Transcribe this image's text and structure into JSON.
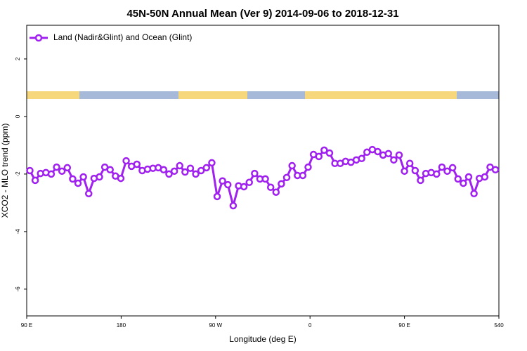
{
  "chart_data": {
    "type": "line",
    "title": "45N-50N Annual Mean (Ver 9)   2014-09-06 to 2018-12-31",
    "xlabel": "Longitude (deg E)",
    "ylabel": "XCO2 - MLO trend (ppm)",
    "legend": "upper left",
    "xlim": [
      90,
      540
    ],
    "ylim": [
      -6.93,
      3.17
    ],
    "xticks": [
      {
        "value": 90,
        "label": "90 E"
      },
      180,
      {
        "value": 270,
        "label": "90 W"
      },
      {
        "value": 360,
        "label": "0"
      },
      {
        "value": 450,
        "label": "90 E"
      },
      540
    ],
    "yticks": [
      2,
      0,
      -2,
      -4,
      -6
    ],
    "series": [
      {
        "name": "Land (Nadir&Glint) and Ocean (Glint)",
        "color": "#a020f0",
        "x": [
          93,
          98.1,
          103.2,
          108.3,
          113.4,
          118.5,
          123.6,
          128.7,
          133.8,
          138.9,
          144,
          149.1,
          154.2,
          159.3,
          164.4,
          169.5,
          174.6,
          179.7,
          184.8,
          189.9,
          195,
          200.1,
          205.2,
          210.3,
          215.4,
          220.5,
          225.6,
          230.7,
          235.8,
          240.9,
          246,
          251.1,
          256.2,
          261.3,
          266.4,
          271.5,
          276.6,
          281.7,
          286.8,
          291.9,
          297,
          302.1,
          307.2,
          312.3,
          317.4,
          322.5,
          327.6,
          332.7,
          337.8,
          342.9,
          348,
          353.1,
          358.2,
          363.3,
          368.4,
          373.5,
          378.6,
          383.7,
          388.8,
          393.9,
          399,
          404.1,
          409.2,
          414.3,
          419.4,
          424.5,
          429.6,
          434.7,
          439.8,
          444.9,
          450,
          455.1,
          460.2,
          465.3,
          470.4,
          475.5,
          480.6,
          485.7,
          490.8,
          495.9,
          501,
          506.1,
          511.2,
          516.3,
          521.4,
          526.5,
          531.6,
          536.7
        ],
        "values": [
          -1.88,
          -2.22,
          -1.98,
          -1.95,
          -2.0,
          -1.76,
          -1.9,
          -1.78,
          -2.17,
          -2.32,
          -2.1,
          -2.68,
          -2.15,
          -2.1,
          -1.76,
          -1.85,
          -2.07,
          -2.15,
          -1.54,
          -1.73,
          -1.66,
          -1.88,
          -1.83,
          -1.8,
          -1.78,
          -1.85,
          -2.0,
          -1.9,
          -1.71,
          -1.93,
          -1.8,
          -2.0,
          -1.88,
          -1.78,
          -1.61,
          -2.78,
          -2.24,
          -2.37,
          -3.1,
          -2.41,
          -2.44,
          -2.29,
          -1.98,
          -2.17,
          -2.17,
          -2.46,
          -2.63,
          -2.34,
          -2.12,
          -1.71,
          -2.05,
          -2.05,
          -1.76,
          -1.32,
          -1.39,
          -1.17,
          -1.27,
          -1.63,
          -1.63,
          -1.56,
          -1.59,
          -1.51,
          -1.46,
          -1.24,
          -1.15,
          -1.22,
          -1.34,
          -1.29,
          -1.51,
          -1.34,
          -1.9,
          -1.63,
          -1.88,
          -2.22,
          -1.98,
          -1.95,
          -2.0,
          -1.76,
          -1.9,
          -1.78,
          -2.17,
          -2.32,
          -2.1,
          -2.68,
          -2.15,
          -2.1,
          -1.76,
          -1.85
        ]
      }
    ]
  }
}
